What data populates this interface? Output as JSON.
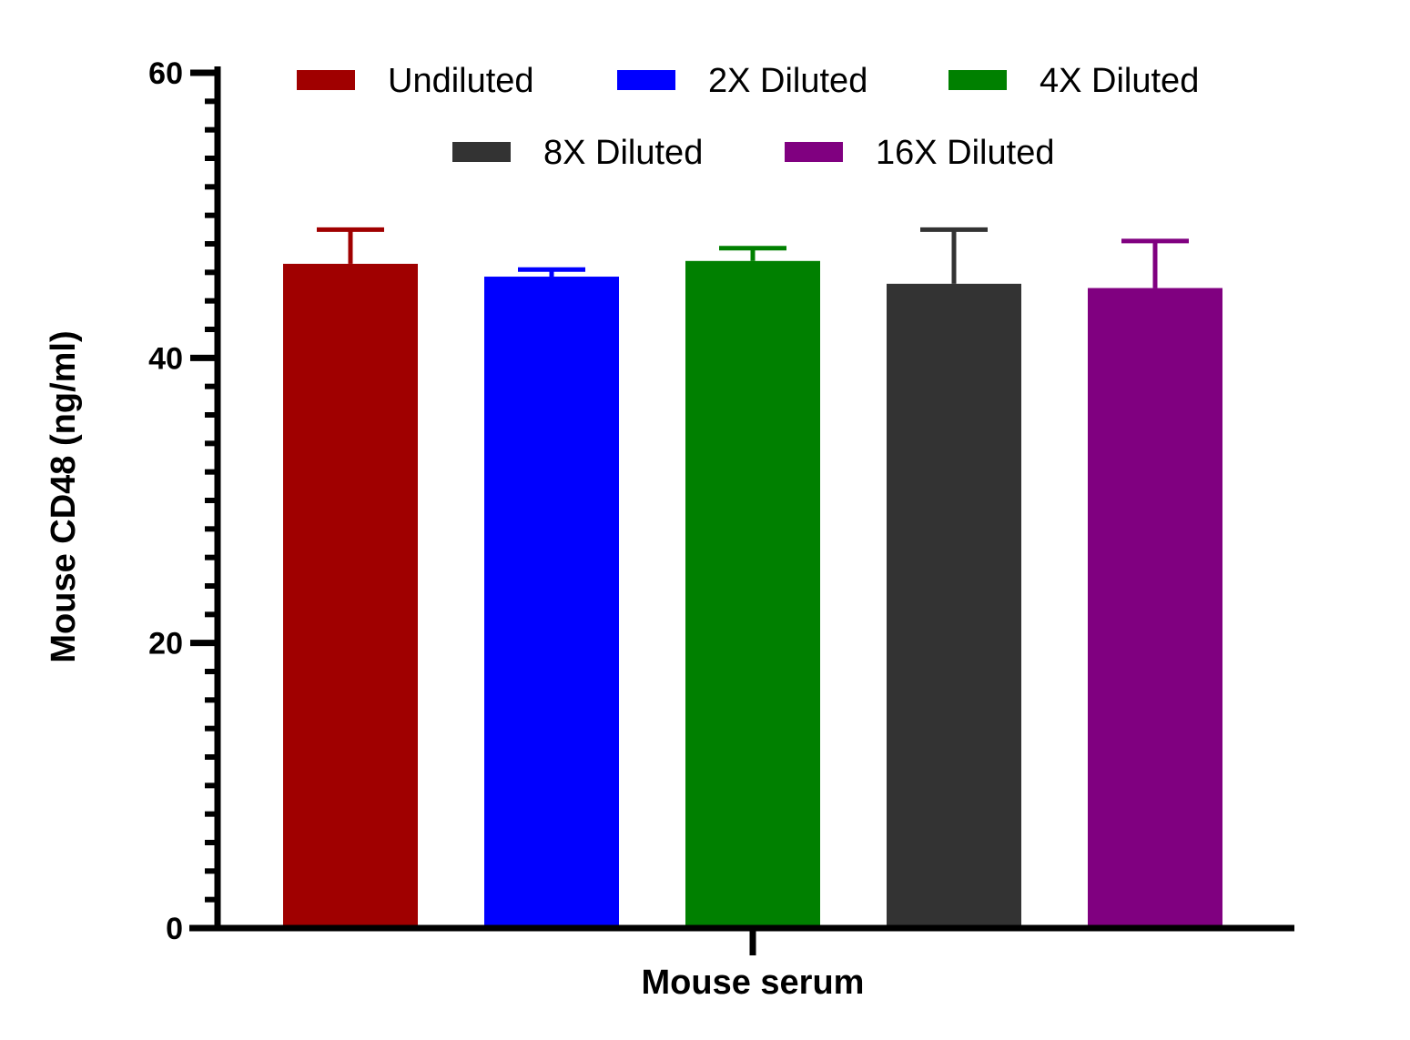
{
  "chart_data": {
    "type": "bar",
    "title": "",
    "xlabel": "Mouse serum",
    "ylabel": "Mouse CD48 (ng/ml)",
    "ylim": [
      0,
      60
    ],
    "yticks": [
      "0",
      "20",
      "40",
      "60"
    ],
    "categories": [
      "Mouse serum"
    ],
    "series": [
      {
        "name": "Undiluted",
        "value": 46.6,
        "error": 2.4,
        "color": "#a00000"
      },
      {
        "name": "2X Diluted",
        "value": 45.7,
        "error": 0.5,
        "color": "#0000ff"
      },
      {
        "name": "4X Diluted",
        "value": 46.8,
        "error": 0.9,
        "color": "#008000"
      },
      {
        "name": "8X Diluted",
        "value": 45.2,
        "error": 3.8,
        "color": "#333333"
      },
      {
        "name": "16X Diluted",
        "value": 44.9,
        "error": 3.3,
        "color": "#800080"
      }
    ],
    "grid": false,
    "legend_position": "top"
  }
}
